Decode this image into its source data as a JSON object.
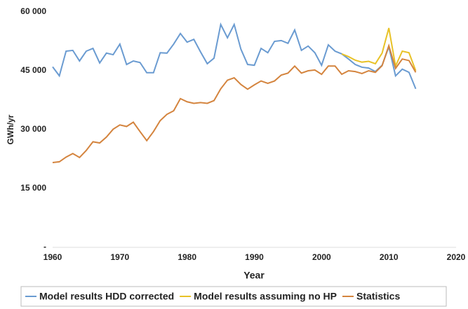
{
  "chart_data": {
    "type": "line",
    "x_label": "Year",
    "y_label": "GWh/yr",
    "x": [
      1960,
      1961,
      1962,
      1963,
      1964,
      1965,
      1966,
      1967,
      1968,
      1969,
      1970,
      1971,
      1972,
      1973,
      1974,
      1975,
      1976,
      1977,
      1978,
      1979,
      1980,
      1981,
      1982,
      1983,
      1984,
      1985,
      1986,
      1987,
      1988,
      1989,
      1990,
      1991,
      1992,
      1993,
      1994,
      1995,
      1996,
      1997,
      1998,
      1999,
      2000,
      2001,
      2002,
      2003,
      2004,
      2005,
      2006,
      2007,
      2008,
      2009,
      2010,
      2011,
      2012,
      2013,
      2014
    ],
    "series": [
      {
        "name": "Model results HDD corrected",
        "color": "#6a9bd1",
        "values": [
          46000,
          43700,
          50000,
          50200,
          47500,
          50000,
          50700,
          47000,
          49500,
          49100,
          51800,
          46600,
          47500,
          47100,
          44500,
          44500,
          49600,
          49500,
          51800,
          54500,
          52300,
          53000,
          49800,
          46800,
          48200,
          56800,
          53400,
          56800,
          50500,
          46600,
          46400,
          50700,
          49600,
          52500,
          52700,
          52000,
          55400,
          50200,
          51300,
          49600,
          46400,
          51600,
          50000,
          49300,
          48000,
          46600,
          45900,
          45700,
          44800,
          46400,
          51100,
          43700,
          45400,
          44600,
          40400
        ]
      },
      {
        "name": "Model results assuming no HP",
        "color": "#e8c227",
        "values": [
          null,
          null,
          null,
          null,
          null,
          null,
          null,
          null,
          null,
          null,
          null,
          null,
          null,
          null,
          null,
          null,
          null,
          null,
          null,
          null,
          null,
          null,
          null,
          null,
          null,
          null,
          null,
          null,
          null,
          null,
          null,
          null,
          null,
          null,
          null,
          null,
          null,
          null,
          null,
          null,
          null,
          null,
          null,
          49300,
          48600,
          47700,
          47200,
          47400,
          46800,
          49500,
          55900,
          46200,
          50000,
          49600,
          45000
        ]
      },
      {
        "name": "Statistics",
        "color": "#d4843e",
        "values": [
          21600,
          21800,
          23000,
          23900,
          22900,
          24700,
          26900,
          26600,
          28100,
          30100,
          31200,
          30800,
          31900,
          29500,
          27200,
          29500,
          32300,
          33900,
          34800,
          37900,
          37100,
          36700,
          36900,
          36700,
          37400,
          40400,
          42600,
          43200,
          41500,
          40300,
          41400,
          42400,
          41800,
          42400,
          43900,
          44400,
          46200,
          44400,
          45000,
          45200,
          44100,
          46200,
          46200,
          44100,
          45000,
          44800,
          44300,
          45000,
          44600,
          46300,
          51400,
          45600,
          48000,
          47600,
          44600
        ]
      }
    ],
    "xlim": [
      1960,
      2020
    ],
    "xticks": [
      1960,
      1970,
      1980,
      1990,
      2000,
      2010,
      2020
    ],
    "ylim": [
      0,
      60000
    ],
    "yticks": [
      {
        "value": 0,
        "label": "-"
      },
      {
        "value": 15000,
        "label": "15 000"
      },
      {
        "value": 30000,
        "label": "30 000"
      },
      {
        "value": 45000,
        "label": "45 000"
      },
      {
        "value": 60000,
        "label": "60 000"
      }
    ],
    "legend": "bottom"
  }
}
